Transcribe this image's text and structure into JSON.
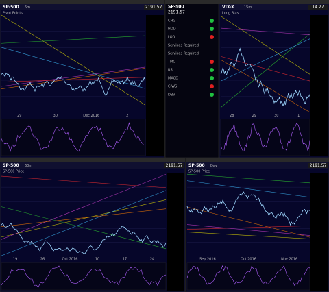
{
  "panes": [
    {
      "symbol": "SP-500",
      "interval": "5m",
      "price": "2191.57",
      "indicator": "Pivot Points",
      "x_labels": [
        "29",
        "30",
        "Dec 2016",
        "2"
      ]
    },
    {
      "symbol": "VIX-X",
      "interval": "15m",
      "price": "14.27",
      "indicator": "Long Bias",
      "x_labels": [
        "28",
        "29",
        "30",
        "1"
      ]
    },
    {
      "symbol": "SP-500",
      "interval": "60m",
      "price": "2191.57",
      "indicator": "SP-500 Price",
      "x_labels": [
        "19",
        "26",
        "Oct 2016",
        "10",
        "17",
        "24"
      ]
    },
    {
      "symbol": "SP-500",
      "interval": "Day",
      "price": "2191.57",
      "indicator": "SP-500 Price",
      "x_labels": [
        "Sep 2016",
        "Oct 2016",
        "Nov 2016"
      ]
    }
  ],
  "quote": {
    "symbol": "SP-500",
    "price": "2191.57",
    "rows": [
      "CHG",
      "HOD",
      "LOD",
      "Services Required",
      "Services Required",
      "TMO",
      "RSI",
      "MACD",
      "C-WS",
      "DBV"
    ]
  }
}
